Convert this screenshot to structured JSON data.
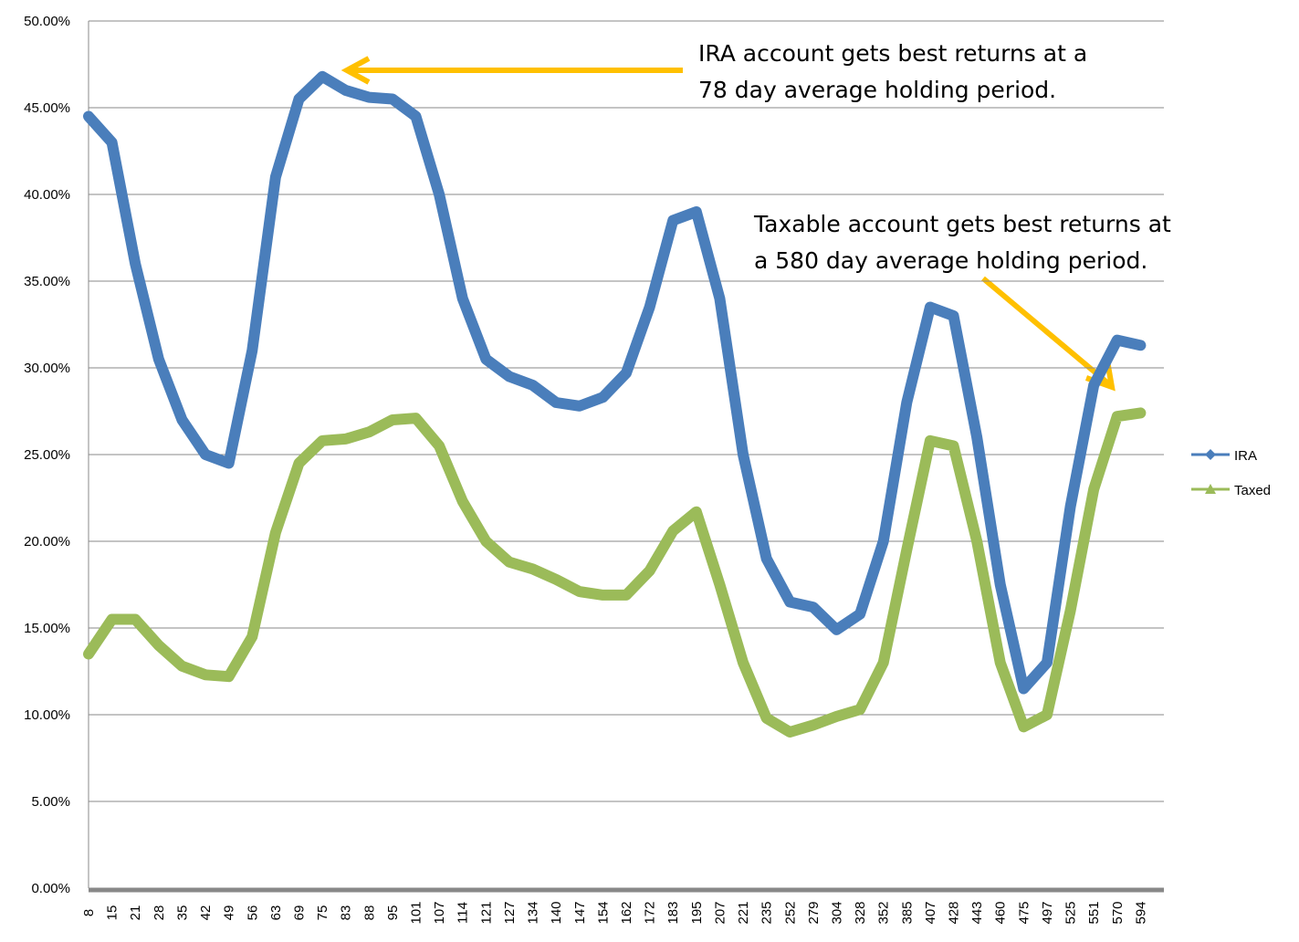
{
  "chart_data": {
    "type": "line",
    "categories": [
      "8",
      "15",
      "21",
      "28",
      "35",
      "42",
      "49",
      "56",
      "63",
      "69",
      "75",
      "83",
      "88",
      "95",
      "101",
      "107",
      "114",
      "121",
      "127",
      "134",
      "140",
      "147",
      "154",
      "162",
      "172",
      "183",
      "195",
      "207",
      "221",
      "235",
      "252",
      "279",
      "304",
      "328",
      "352",
      "385",
      "407",
      "428",
      "443",
      "460",
      "475",
      "497",
      "525",
      "551",
      "570",
      "594"
    ],
    "series": [
      {
        "name": "IRA",
        "color": "#4a7ebb",
        "marker": "diamond",
        "values": [
          44.5,
          43.0,
          36.0,
          30.5,
          27.0,
          25.0,
          24.5,
          31.0,
          41.0,
          45.5,
          46.8,
          46.0,
          45.6,
          45.5,
          44.5,
          40.0,
          34.0,
          30.5,
          29.5,
          29.0,
          28.0,
          27.8,
          28.3,
          29.7,
          33.5,
          38.5,
          39.0,
          34.0,
          25.0,
          19.0,
          16.5,
          16.2,
          14.9,
          15.8,
          20.0,
          28.0,
          33.5,
          33.0,
          26.0,
          17.5,
          11.5,
          13.0,
          22.0,
          29.0,
          31.6,
          31.3
        ]
      },
      {
        "name": "Taxed",
        "color": "#9bbb59",
        "marker": "triangle",
        "values": [
          13.5,
          15.5,
          15.5,
          14.0,
          12.8,
          12.3,
          12.2,
          14.5,
          20.5,
          24.5,
          25.8,
          25.9,
          26.3,
          27.0,
          27.1,
          25.5,
          22.3,
          20.0,
          18.8,
          18.4,
          17.8,
          17.1,
          16.9,
          16.9,
          18.3,
          20.6,
          21.7,
          17.5,
          13.0,
          9.8,
          9.0,
          9.4,
          9.9,
          10.3,
          13.0,
          19.5,
          25.8,
          25.5,
          20.0,
          13.0,
          9.3,
          10.0,
          16.0,
          23.0,
          27.2,
          27.4
        ]
      }
    ],
    "ylim": [
      0,
      50
    ],
    "yticks": [
      {
        "value": 0,
        "label": "0.00%"
      },
      {
        "value": 5,
        "label": "5.00%"
      },
      {
        "value": 10,
        "label": "10.00%"
      },
      {
        "value": 15,
        "label": "15.00%"
      },
      {
        "value": 20,
        "label": "20.00%"
      },
      {
        "value": 25,
        "label": "25.00%"
      },
      {
        "value": 30,
        "label": "30.00%"
      },
      {
        "value": 35,
        "label": "35.00%"
      },
      {
        "value": 40,
        "label": "40.00%"
      },
      {
        "value": 45,
        "label": "45.00%"
      },
      {
        "value": 50,
        "label": "50.00%"
      }
    ],
    "grid": true,
    "legend": "right",
    "annotations": [
      {
        "lines": [
          "IRA account gets best returns at a",
          "78 day average holding period."
        ]
      },
      {
        "lines": [
          "Taxable account gets best returns at",
          "a 580 day average holding period."
        ]
      }
    ]
  }
}
